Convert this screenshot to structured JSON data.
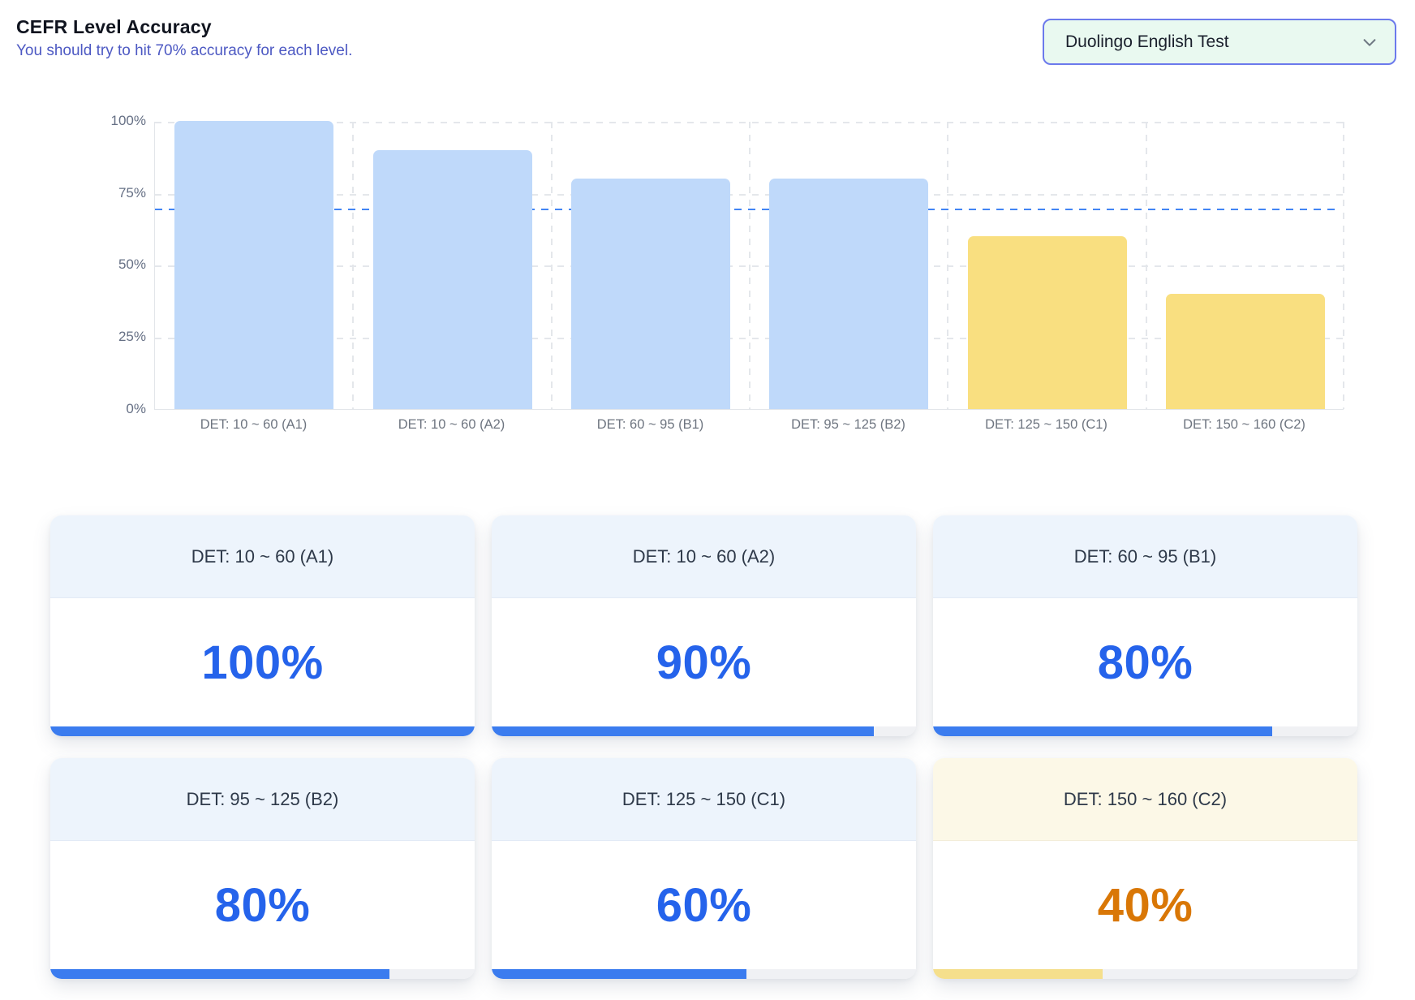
{
  "header": {
    "title": "CEFR Level Accuracy",
    "subtitle": "You should try to hit 70% accuracy for each level."
  },
  "test_selector": {
    "value": "Duolingo English Test",
    "icon": "chevron-down-icon"
  },
  "chart_data": {
    "type": "bar",
    "title": "CEFR Level Accuracy",
    "categories": [
      "DET: 10 ~ 60 (A1)",
      "DET: 10 ~ 60 (A2)",
      "DET: 60 ~ 95 (B1)",
      "DET: 95 ~ 125 (B2)",
      "DET: 125 ~ 150 (C1)",
      "DET: 150 ~ 160 (C2)"
    ],
    "values": [
      100,
      90,
      80,
      80,
      60,
      40
    ],
    "unit": "%",
    "ylim": [
      0,
      100
    ],
    "y_tick_labels": [
      "100%",
      "75%",
      "50%",
      "25%",
      "0%"
    ],
    "y_tick_values": [
      100,
      75,
      50,
      25,
      0
    ],
    "grid": true,
    "legend": false,
    "target_line": {
      "value": 70,
      "color": "#4285f4",
      "style": "dashed"
    },
    "colors": [
      "#bfd9fa",
      "#bfd9fa",
      "#bfd9fa",
      "#bfd9fa",
      "#f9df80",
      "#f9df80"
    ]
  },
  "cards": [
    {
      "label": "DET: 10 ~ 60 (A1)",
      "value": "100%",
      "percent": 100,
      "theme": "blue"
    },
    {
      "label": "DET: 10 ~ 60 (A2)",
      "value": "90%",
      "percent": 90,
      "theme": "blue"
    },
    {
      "label": "DET: 60 ~ 95 (B1)",
      "value": "80%",
      "percent": 80,
      "theme": "blue"
    },
    {
      "label": "DET: 95 ~ 125 (B2)",
      "value": "80%",
      "percent": 80,
      "theme": "blue"
    },
    {
      "label": "DET: 125 ~ 150 (C1)",
      "value": "60%",
      "percent": 60,
      "theme": "blue"
    },
    {
      "label": "DET: 150 ~ 160 (C2)",
      "value": "40%",
      "percent": 40,
      "theme": "amber"
    }
  ],
  "colors": {
    "accent_blue": "#2563eb",
    "accent_orange": "#d97706",
    "bar_blue": "#bfd9fa",
    "bar_yellow": "#f9df80",
    "progress_blue": "#3b7cef",
    "progress_yellow": "#f5df8c",
    "subtitle_text": "#4d59c3",
    "dropdown_bg": "#e9f9f0",
    "dropdown_border": "#6c7aec"
  }
}
